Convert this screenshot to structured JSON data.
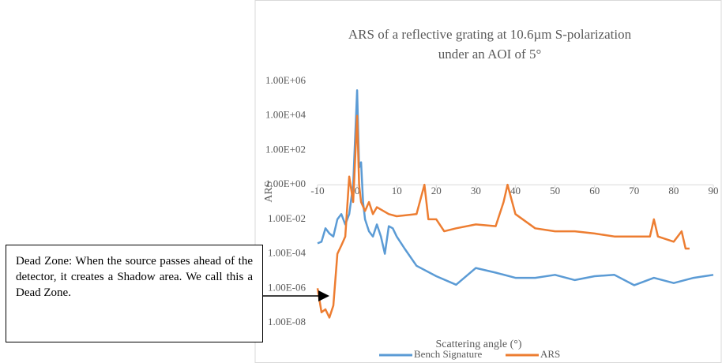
{
  "chart_data": {
    "type": "line",
    "title": [
      "ARS of a reflective grating at 10.6µm S-polarization",
      "under an AOI of 5°"
    ],
    "xlabel": "Scattering angle (°)",
    "ylabel": "ARS",
    "log_y": true,
    "xlim": [
      -10,
      90
    ],
    "xticks": [
      -10,
      0,
      10,
      20,
      30,
      40,
      50,
      60,
      70,
      80,
      90
    ],
    "ylim": [
      1e-08,
      1000000.0
    ],
    "yticks": [
      {
        "value": 1000000.0,
        "label": "1.00E+06"
      },
      {
        "value": 10000.0,
        "label": "1.00E+04"
      },
      {
        "value": 100,
        "label": "1.00E+02"
      },
      {
        "value": 1,
        "label": "1.00E+00"
      },
      {
        "value": 0.01,
        "label": "1.00E-02"
      },
      {
        "value": 0.0001,
        "label": "1.00E-04"
      },
      {
        "value": 1e-06,
        "label": "1.00E-06"
      },
      {
        "value": 1e-08,
        "label": "1.00E-08"
      }
    ],
    "grid": false,
    "legend": "bottom",
    "series": [
      {
        "name": "Bench Signature",
        "color": "#5b9bd5",
        "x": [
          -10,
          -9,
          -8,
          -7,
          -6,
          -5,
          -4,
          -3,
          -2,
          -1,
          0,
          0.5,
          1,
          1.5,
          2,
          3,
          4,
          5,
          6,
          7,
          8,
          9,
          10,
          12,
          15,
          20,
          25,
          30,
          35,
          40,
          45,
          50,
          55,
          60,
          65,
          70,
          75,
          80,
          85,
          90
        ],
        "values": [
          0.0004,
          0.0005,
          0.003,
          0.0015,
          0.001,
          0.01,
          0.02,
          0.005,
          0.02,
          1,
          300000,
          10,
          20,
          0.1,
          0.01,
          0.002,
          0.001,
          0.005,
          0.001,
          0.0001,
          0.004,
          0.003,
          0.001,
          0.0002,
          2e-05,
          5e-06,
          1.6e-06,
          1.5e-05,
          8e-06,
          4e-06,
          4e-06,
          6e-06,
          3e-06,
          5e-06,
          6e-06,
          1.5e-06,
          4e-06,
          2e-06,
          4e-06,
          6e-06
        ]
      },
      {
        "name": "ARS",
        "color": "#ed7d31",
        "x": [
          -10,
          -9,
          -8,
          -7,
          -6,
          -5,
          -4,
          -3,
          -2,
          -1,
          0,
          0.5,
          1,
          2,
          3,
          4,
          5,
          8,
          10,
          15,
          17,
          18,
          20,
          22,
          25,
          30,
          35,
          37,
          38,
          40,
          45,
          50,
          55,
          60,
          65,
          70,
          74,
          75,
          76,
          80,
          82,
          83,
          84
        ],
        "values": [
          1e-06,
          4e-08,
          6e-08,
          2e-08,
          1e-07,
          0.0001,
          0.0003,
          0.001,
          3,
          0.1,
          10000,
          1,
          0.1,
          0.03,
          0.1,
          0.02,
          0.05,
          0.02,
          0.015,
          0.02,
          1,
          0.01,
          0.01,
          0.002,
          0.003,
          0.005,
          0.004,
          0.1,
          1,
          0.02,
          0.003,
          0.002,
          0.002,
          0.0015,
          0.001,
          0.001,
          0.001,
          0.01,
          0.001,
          0.0005,
          0.002,
          0.0002,
          0.0002
        ]
      }
    ],
    "annotation": "Dead Zone: When the source passes ahead of the detector, it creates a Shadow area. We call this a Dead Zone."
  }
}
